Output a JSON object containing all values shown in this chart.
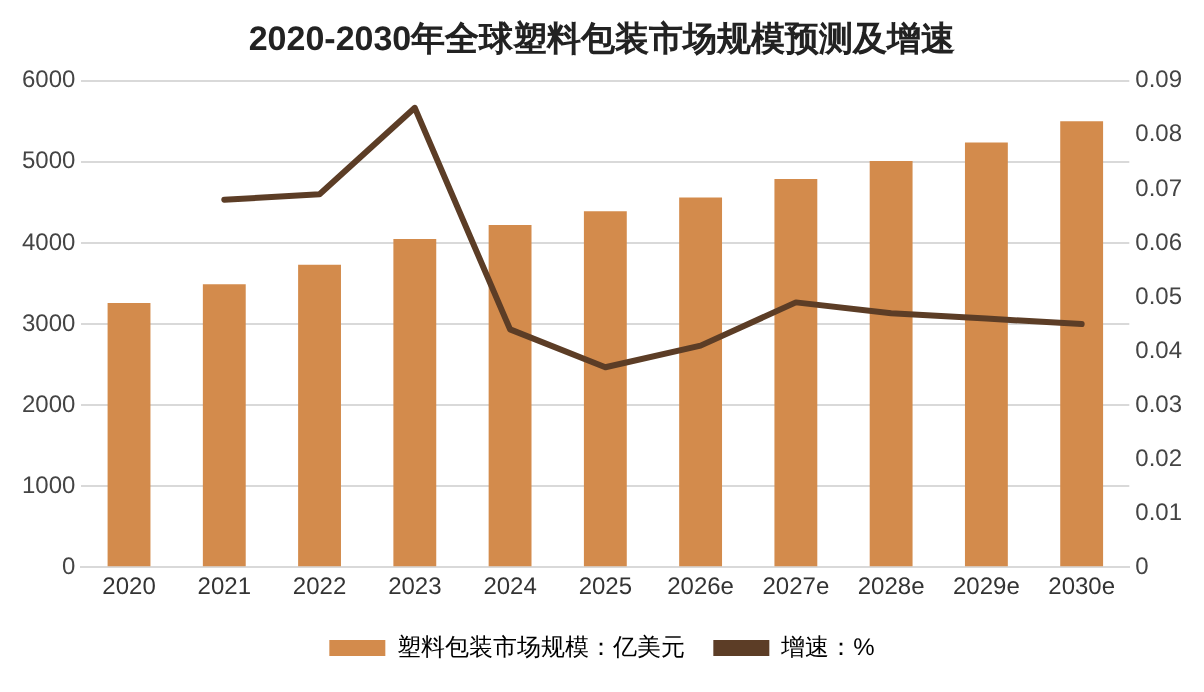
{
  "chart_data": {
    "type": "bar",
    "title": "2020-2030年全球塑料包装市场规模预测及增速",
    "categories": [
      "2020",
      "2021",
      "2022",
      "2023",
      "2024",
      "2025",
      "2026e",
      "2027e",
      "2028e",
      "2029e",
      "2030e"
    ],
    "series": [
      {
        "name": "塑料包装市场规模：亿美元",
        "color": "#d38b4c",
        "values": [
          3260,
          3490,
          3730,
          4050,
          4220,
          4390,
          4560,
          4790,
          5010,
          5240,
          5500
        ]
      },
      {
        "name": "增速：%",
        "type": "line",
        "axis": "y2",
        "color": "#5c3d26",
        "values": [
          null,
          0.068,
          0.069,
          0.085,
          0.044,
          0.037,
          0.041,
          0.049,
          0.047,
          0.046,
          0.045
        ]
      }
    ],
    "ylim": [
      0,
      6000
    ],
    "yticks": [
      0,
      1000,
      2000,
      3000,
      4000,
      5000,
      6000
    ],
    "y2lim": [
      0,
      0.09
    ],
    "y2ticks": [
      0,
      0.01,
      0.02,
      0.03,
      0.04,
      0.05,
      0.06,
      0.07,
      0.08,
      0.09
    ],
    "grid": "y",
    "legend": "bottom",
    "marker": "none",
    "line_style": "solid"
  }
}
